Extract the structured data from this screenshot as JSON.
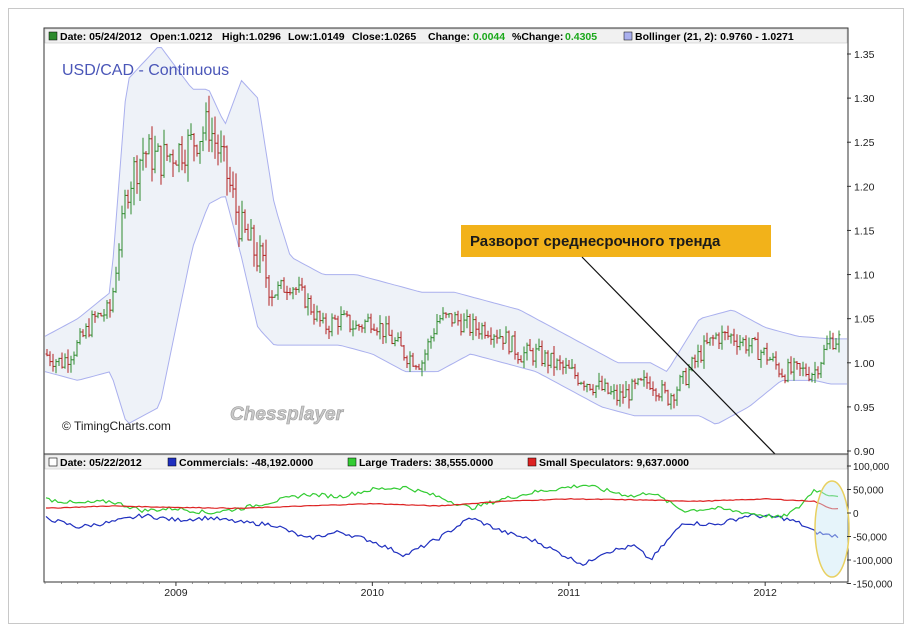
{
  "header_main": {
    "date": "Date: 05/24/2012",
    "open": "Open:1.0212",
    "high": "High:1.0296",
    "low": "Low:1.0149",
    "close": "Close:1.0265",
    "change_label": "Change:",
    "change_value": "0.0044",
    "pct_label": "%Change:",
    "pct_value": "0.4305",
    "bollinger": "Bollinger (21, 2): 0.9760 - 1.0271"
  },
  "header_cot": {
    "date": "Date: 05/22/2012",
    "commercials": "Commercials: -48,192.0000",
    "large": "Large Traders: 38,555.0000",
    "small": "Small Speculators: 9,637.0000"
  },
  "chart_title": "USD/CAD - Continuous",
  "copyright": "© TimingCharts.com",
  "watermark": "Chessplayer",
  "annotation": "Разворот среднесрочного тренда",
  "colors": {
    "up": "#2e8b2e",
    "down": "#b22222",
    "band": "#aab0ee",
    "band_fill": "#eef2f8",
    "commercials": "#1f2fbf",
    "large": "#33cc33",
    "small": "#dd2222",
    "annotation_bg": "#f2b21a",
    "title": "#4a56b8",
    "ellipse": "#e8d060"
  },
  "chart_data": [
    {
      "type": "candlestick",
      "title": "USD/CAD - Continuous",
      "x_ticks": [
        "2009",
        "2010",
        "2011",
        "2012"
      ],
      "y_ticks": [
        "1.35",
        "1.30",
        "1.25",
        "1.20",
        "1.15",
        "1.10",
        "1.05",
        "1.00",
        "0.95",
        "0.90"
      ],
      "ylim": [
        0.9,
        1.37
      ],
      "close_path": [
        [
          "2008-05",
          1.01
        ],
        [
          "2008-06",
          1.0
        ],
        [
          "2008-07",
          1.02
        ],
        [
          "2008-08",
          1.05
        ],
        [
          "2008-09",
          1.06
        ],
        [
          "2008-10",
          1.2
        ],
        [
          "2008-11",
          1.24
        ],
        [
          "2008-12",
          1.23
        ],
        [
          "2009-01",
          1.24
        ],
        [
          "2009-02",
          1.25
        ],
        [
          "2009-03",
          1.27
        ],
        [
          "2009-04",
          1.22
        ],
        [
          "2009-05",
          1.15
        ],
        [
          "2009-06",
          1.12
        ],
        [
          "2009-07",
          1.08
        ],
        [
          "2009-08",
          1.09
        ],
        [
          "2009-09",
          1.07
        ],
        [
          "2009-10",
          1.04
        ],
        [
          "2009-11",
          1.05
        ],
        [
          "2009-12",
          1.04
        ],
        [
          "2010-01",
          1.05
        ],
        [
          "2010-02",
          1.03
        ],
        [
          "2010-03",
          1.01
        ],
        [
          "2010-04",
          1.0
        ],
        [
          "2010-05",
          1.05
        ],
        [
          "2010-06",
          1.05
        ],
        [
          "2010-07",
          1.04
        ],
        [
          "2010-08",
          1.04
        ],
        [
          "2010-09",
          1.03
        ],
        [
          "2010-10",
          1.01
        ],
        [
          "2010-11",
          1.01
        ],
        [
          "2010-12",
          1.0
        ],
        [
          "2011-01",
          0.99
        ],
        [
          "2011-02",
          0.98
        ],
        [
          "2011-03",
          0.97
        ],
        [
          "2011-04",
          0.96
        ],
        [
          "2011-05",
          0.97
        ],
        [
          "2011-06",
          0.98
        ],
        [
          "2011-07",
          0.96
        ],
        [
          "2011-08",
          0.98
        ],
        [
          "2011-09",
          1.01
        ],
        [
          "2011-10",
          1.03
        ],
        [
          "2011-11",
          1.03
        ],
        [
          "2011-12",
          1.02
        ],
        [
          "2012-01",
          1.01
        ],
        [
          "2012-02",
          0.99
        ],
        [
          "2012-03",
          0.99
        ],
        [
          "2012-04",
          0.99
        ],
        [
          "2012-05",
          1.0265
        ]
      ],
      "upper_band": [
        [
          "2008-05",
          1.03
        ],
        [
          "2008-07",
          1.05
        ],
        [
          "2008-09",
          1.08
        ],
        [
          "2008-10",
          1.32
        ],
        [
          "2008-12",
          1.36
        ],
        [
          "2009-02",
          1.31
        ],
        [
          "2009-03",
          1.31
        ],
        [
          "2009-04",
          1.27
        ],
        [
          "2009-05",
          1.32
        ],
        [
          "2009-06",
          1.3
        ],
        [
          "2009-07",
          1.18
        ],
        [
          "2009-08",
          1.12
        ],
        [
          "2009-10",
          1.1
        ],
        [
          "2009-12",
          1.1
        ],
        [
          "2010-02",
          1.09
        ],
        [
          "2010-04",
          1.08
        ],
        [
          "2010-06",
          1.08
        ],
        [
          "2010-08",
          1.07
        ],
        [
          "2010-10",
          1.06
        ],
        [
          "2010-12",
          1.04
        ],
        [
          "2011-02",
          1.02
        ],
        [
          "2011-04",
          1.0
        ],
        [
          "2011-06",
          1.0
        ],
        [
          "2011-07",
          0.99
        ],
        [
          "2011-09",
          1.05
        ],
        [
          "2011-11",
          1.06
        ],
        [
          "2012-01",
          1.04
        ],
        [
          "2012-03",
          1.03
        ],
        [
          "2012-05",
          1.0271
        ]
      ],
      "lower_band": [
        [
          "2008-05",
          0.99
        ],
        [
          "2008-07",
          0.98
        ],
        [
          "2008-09",
          0.99
        ],
        [
          "2008-10",
          0.93
        ],
        [
          "2008-12",
          0.95
        ],
        [
          "2009-02",
          1.13
        ],
        [
          "2009-03",
          1.18
        ],
        [
          "2009-04",
          1.19
        ],
        [
          "2009-05",
          1.12
        ],
        [
          "2009-06",
          1.04
        ],
        [
          "2009-07",
          1.02
        ],
        [
          "2009-09",
          1.02
        ],
        [
          "2009-11",
          1.02
        ],
        [
          "2010-01",
          1.01
        ],
        [
          "2010-03",
          0.99
        ],
        [
          "2010-05",
          0.99
        ],
        [
          "2010-07",
          1.01
        ],
        [
          "2010-09",
          1.0
        ],
        [
          "2010-11",
          0.99
        ],
        [
          "2011-01",
          0.97
        ],
        [
          "2011-03",
          0.95
        ],
        [
          "2011-05",
          0.94
        ],
        [
          "2011-07",
          0.94
        ],
        [
          "2011-09",
          0.94
        ],
        [
          "2011-10",
          0.93
        ],
        [
          "2011-12",
          0.95
        ],
        [
          "2012-02",
          0.98
        ],
        [
          "2012-04",
          0.98
        ],
        [
          "2012-05",
          0.976
        ]
      ]
    },
    {
      "type": "line",
      "title": "COT",
      "y_ticks": [
        "100,000",
        "50,000",
        "0",
        "-50,000",
        "-100,000",
        "-150,000"
      ],
      "ylim": [
        -150000,
        100000
      ],
      "series": [
        {
          "name": "Commercials",
          "points": [
            [
              "2008-05",
              -10000
            ],
            [
              "2008-07",
              -30000
            ],
            [
              "2008-09",
              -20000
            ],
            [
              "2008-11",
              -5000
            ],
            [
              "2009-01",
              -15000
            ],
            [
              "2009-03",
              -10000
            ],
            [
              "2009-05",
              -20000
            ],
            [
              "2009-07",
              -25000
            ],
            [
              "2009-09",
              -55000
            ],
            [
              "2009-11",
              -40000
            ],
            [
              "2010-01",
              -60000
            ],
            [
              "2010-03",
              -90000
            ],
            [
              "2010-05",
              -55000
            ],
            [
              "2010-07",
              -10000
            ],
            [
              "2010-09",
              -40000
            ],
            [
              "2010-11",
              -60000
            ],
            [
              "2011-01",
              -95000
            ],
            [
              "2011-02",
              -110000
            ],
            [
              "2011-03",
              -85000
            ],
            [
              "2011-05",
              -70000
            ],
            [
              "2011-06",
              -100000
            ],
            [
              "2011-07",
              -60000
            ],
            [
              "2011-08",
              -20000
            ],
            [
              "2011-10",
              -25000
            ],
            [
              "2011-12",
              -5000
            ],
            [
              "2012-02",
              -10000
            ],
            [
              "2012-03",
              -20000
            ],
            [
              "2012-04",
              -40000
            ],
            [
              "2012-05",
              -48192
            ]
          ]
        },
        {
          "name": "Large Traders",
          "points": [
            [
              "2008-05",
              30000
            ],
            [
              "2008-07",
              20000
            ],
            [
              "2008-09",
              25000
            ],
            [
              "2008-11",
              5000
            ],
            [
              "2009-01",
              10000
            ],
            [
              "2009-03",
              0
            ],
            [
              "2009-05",
              10000
            ],
            [
              "2009-07",
              25000
            ],
            [
              "2009-09",
              40000
            ],
            [
              "2009-11",
              35000
            ],
            [
              "2010-01",
              50000
            ],
            [
              "2010-03",
              55000
            ],
            [
              "2010-05",
              35000
            ],
            [
              "2010-07",
              10000
            ],
            [
              "2010-09",
              30000
            ],
            [
              "2010-11",
              45000
            ],
            [
              "2011-01",
              55000
            ],
            [
              "2011-02",
              60000
            ],
            [
              "2011-03",
              50000
            ],
            [
              "2011-05",
              35000
            ],
            [
              "2011-06",
              45000
            ],
            [
              "2011-07",
              25000
            ],
            [
              "2011-08",
              5000
            ],
            [
              "2011-10",
              10000
            ],
            [
              "2011-12",
              0
            ],
            [
              "2012-02",
              -10000
            ],
            [
              "2012-03",
              10000
            ],
            [
              "2012-04",
              50000
            ],
            [
              "2012-05",
              38555
            ]
          ]
        },
        {
          "name": "Small Speculators",
          "points": [
            [
              "2008-05",
              10000
            ],
            [
              "2008-09",
              15000
            ],
            [
              "2009-01",
              12000
            ],
            [
              "2009-05",
              10000
            ],
            [
              "2009-09",
              15000
            ],
            [
              "2010-01",
              20000
            ],
            [
              "2010-05",
              15000
            ],
            [
              "2010-09",
              25000
            ],
            [
              "2011-01",
              30000
            ],
            [
              "2011-05",
              28000
            ],
            [
              "2011-09",
              25000
            ],
            [
              "2012-01",
              30000
            ],
            [
              "2012-04",
              25000
            ],
            [
              "2012-05",
              9637
            ]
          ]
        }
      ]
    }
  ]
}
